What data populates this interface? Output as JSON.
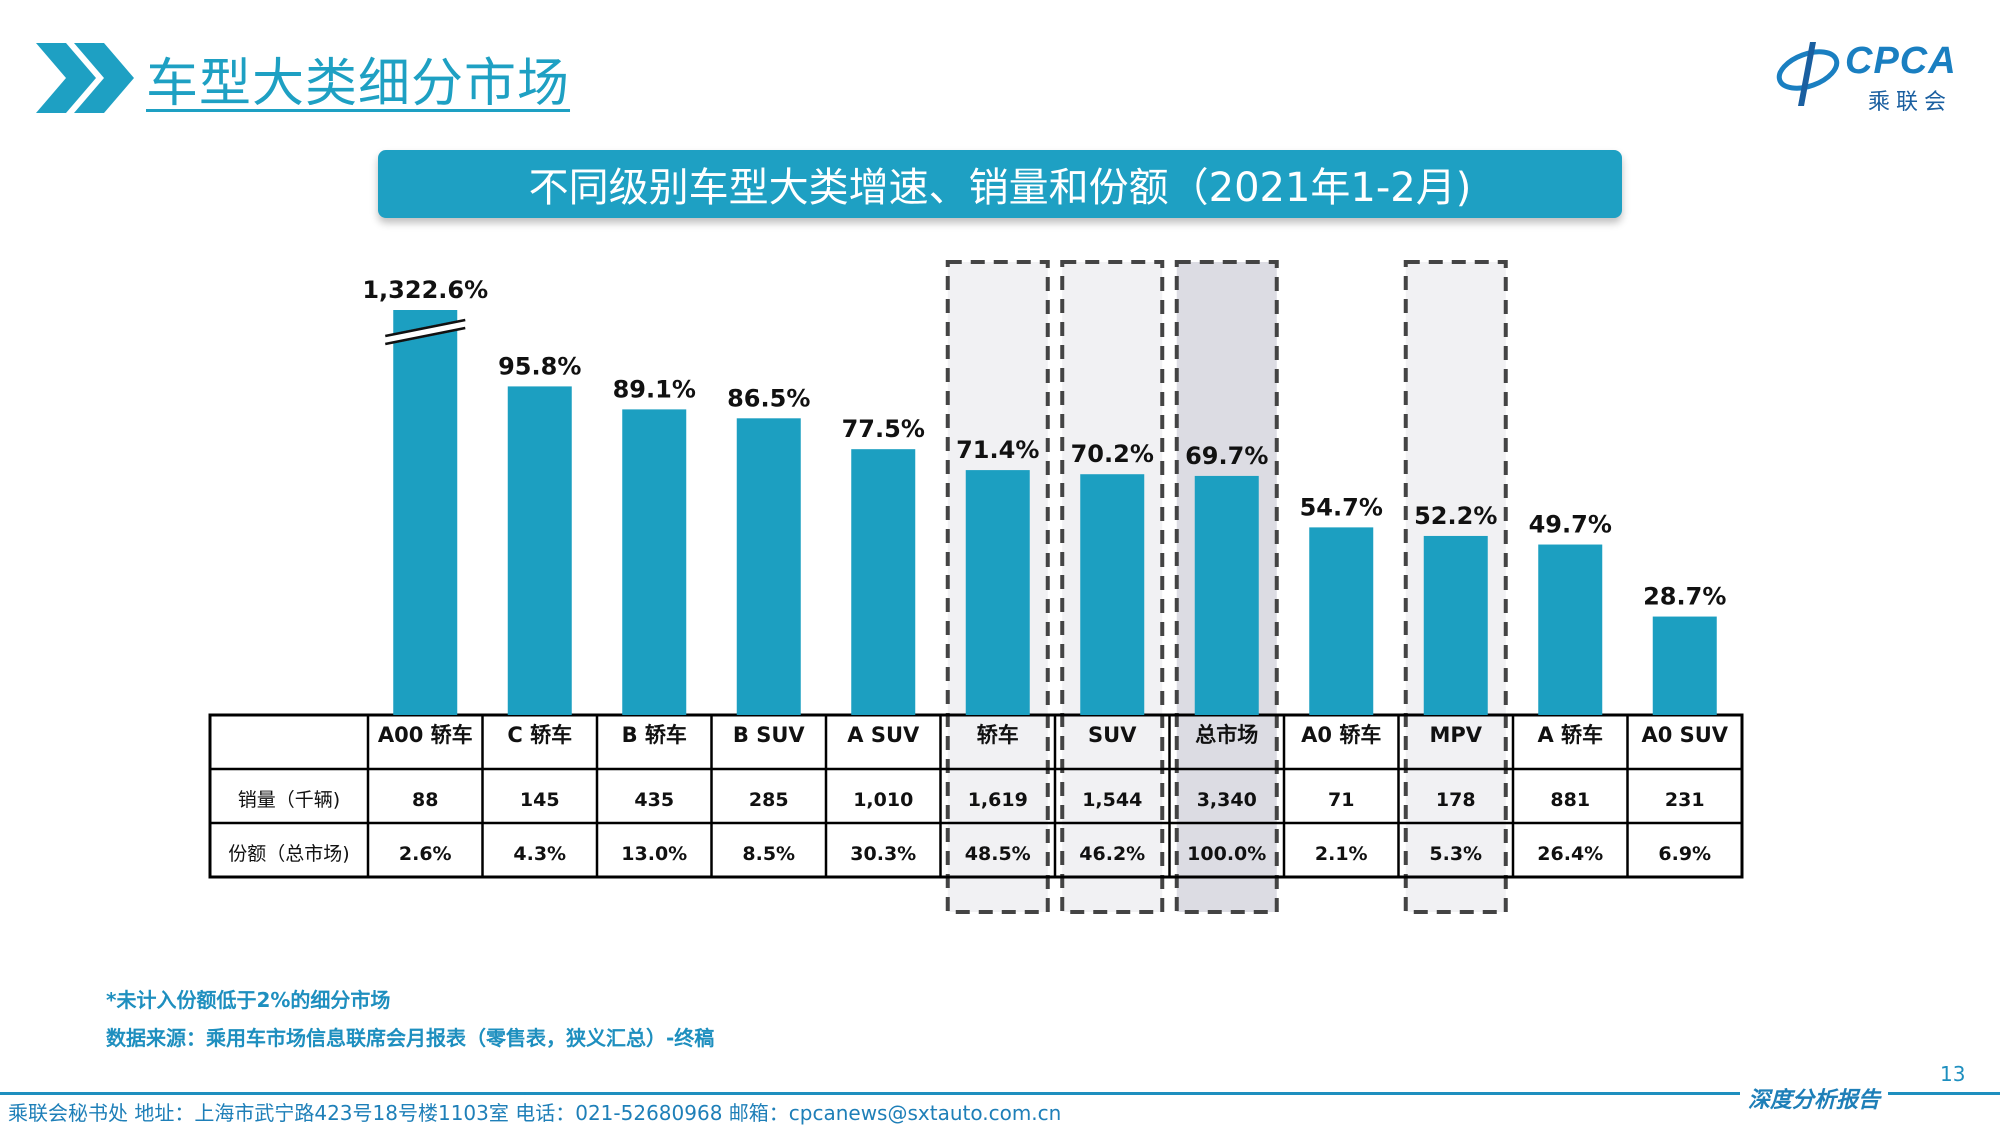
{
  "header": {
    "title": "车型大类细分市场",
    "logo_text": "CPCA",
    "logo_sub": "乘联会"
  },
  "banner": {
    "title": "不同级别车型大类增速、销量和份额（2021年1-2月)"
  },
  "colors": {
    "accent": "#1ea0c3",
    "bar": "#1c9fc1",
    "highlight_fill": "#f1f1f3",
    "highlight_fill_dark": "#dcdce3",
    "dash": "#444444"
  },
  "chart_data": {
    "type": "bar",
    "categories": [
      "A00 轿车",
      "C 轿车",
      "B 轿车",
      "B SUV",
      "A SUV",
      "轿车",
      "SUV",
      "总市场",
      "A0 轿车",
      "MPV",
      "A 轿车",
      "A0 SUV"
    ],
    "values": [
      1322.6,
      95.8,
      89.1,
      86.5,
      77.5,
      71.4,
      70.2,
      69.7,
      54.7,
      52.2,
      49.7,
      28.7
    ],
    "value_labels": [
      "1,322.6%",
      "95.8%",
      "89.1%",
      "86.5%",
      "77.5%",
      "71.4%",
      "70.2%",
      "69.7%",
      "54.7%",
      "52.2%",
      "49.7%",
      "28.7%"
    ],
    "axis_break_at": 0,
    "highlighted": [
      5,
      6,
      7,
      9
    ],
    "highlighted_dark": [
      7
    ],
    "table": {
      "rows": [
        {
          "label": "销量（千辆)",
          "values": [
            "88",
            "145",
            "435",
            "285",
            "1,010",
            "1,619",
            "1,544",
            "3,340",
            "71",
            "178",
            "881",
            "231"
          ]
        },
        {
          "label": "份额（总市场)",
          "values": [
            "2.6%",
            "4.3%",
            "13.0%",
            "8.5%",
            "30.3%",
            "48.5%",
            "46.2%",
            "100.0%",
            "2.1%",
            "5.3%",
            "26.4%",
            "6.9%"
          ]
        }
      ]
    }
  },
  "footnotes": {
    "note": "*未计入份额低于2%的细分市场",
    "source": "数据来源：乘用车市场信息联席会月报表（零售表，狭义汇总）-终稿"
  },
  "page_number": "13",
  "footer": {
    "contact": "乘联会秘书处   地址：上海市武宁路423号18号楼1103室  电话：021-52680968   邮箱：cpcanews@sxtauto.com.cn",
    "report_label": "深度分析报告"
  }
}
